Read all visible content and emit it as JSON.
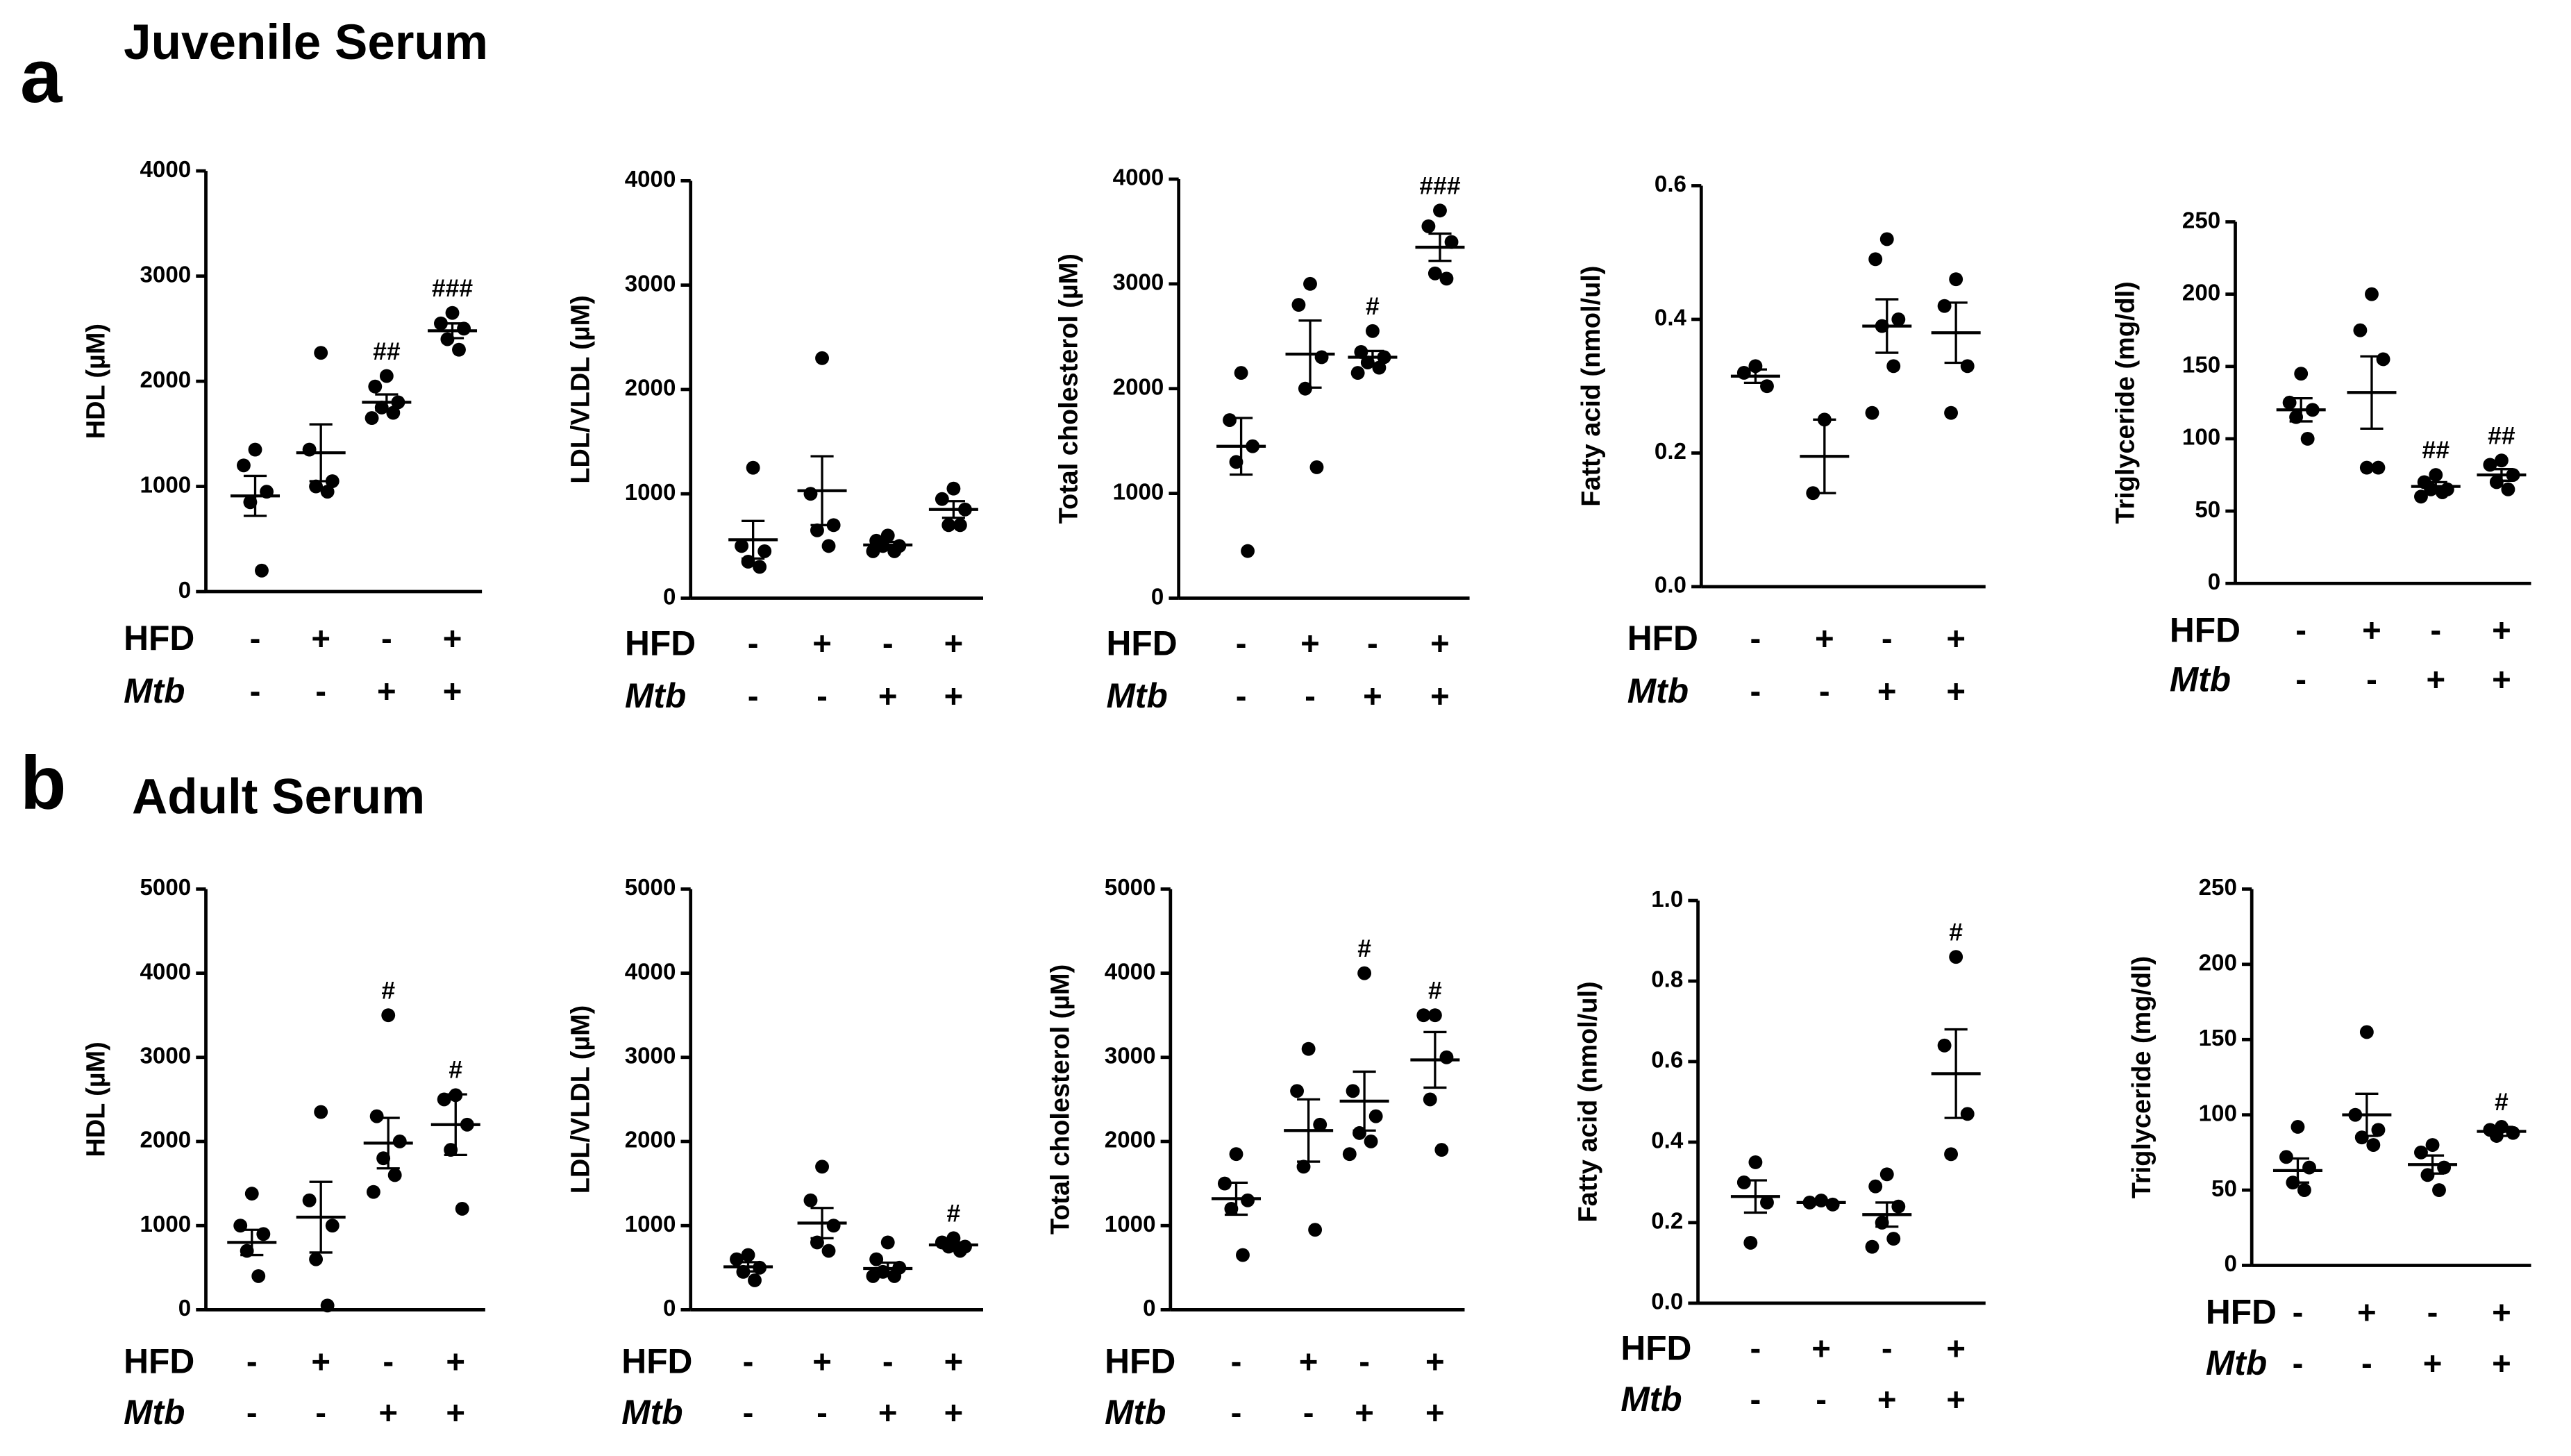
{
  "panels": [
    {
      "letter": "a",
      "title": "Juvenile Serum"
    },
    {
      "letter": "b",
      "title": "Adult Serum"
    }
  ],
  "chart_data": [
    {
      "type": "dot",
      "ylabel": "HDL (µM)",
      "ylim": [
        0,
        4000
      ],
      "yticks": [
        0,
        1000,
        2000,
        3000,
        4000
      ],
      "groups": [
        {
          "values": [
            1350,
            1200,
            950,
            850,
            200
          ],
          "mean": 910,
          "sem": 190
        },
        {
          "values": [
            2270,
            1350,
            1050,
            1000,
            950
          ],
          "mean": 1320,
          "sem": 270
        },
        {
          "values": [
            2050,
            1950,
            1800,
            1750,
            1700,
            1650
          ],
          "mean": 1800,
          "sem": 75,
          "label": "##"
        },
        {
          "values": [
            2650,
            2550,
            2500,
            2400,
            2300
          ],
          "mean": 2480,
          "sem": 70,
          "label": "###"
        }
      ],
      "rows": [
        {
          "name": "HFD",
          "signs": [
            "-",
            "+",
            "-",
            "+"
          ]
        },
        {
          "name": "Mtb",
          "signs": [
            "-",
            "-",
            "+",
            "+"
          ]
        }
      ]
    },
    {
      "type": "dot",
      "ylabel": "LDL/VLDL (µM)",
      "ylim": [
        0,
        4000
      ],
      "yticks": [
        0,
        1000,
        2000,
        3000,
        4000
      ],
      "groups": [
        {
          "values": [
            1250,
            500,
            450,
            350,
            300
          ],
          "mean": 560,
          "sem": 180
        },
        {
          "values": [
            2300,
            1000,
            700,
            650,
            500
          ],
          "mean": 1030,
          "sem": 330
        },
        {
          "values": [
            600,
            550,
            500,
            500,
            450,
            450
          ],
          "mean": 510,
          "sem": 30
        },
        {
          "values": [
            1050,
            950,
            850,
            700,
            700
          ],
          "mean": 850,
          "sem": 80
        }
      ],
      "rows": [
        {
          "name": "HFD",
          "signs": [
            "-",
            "+",
            "-",
            "+"
          ]
        },
        {
          "name": "Mtb",
          "signs": [
            "-",
            "-",
            "+",
            "+"
          ]
        }
      ]
    },
    {
      "type": "dot",
      "ylabel": "Total cholesterol (µM)",
      "ylim": [
        0,
        4000
      ],
      "yticks": [
        0,
        1000,
        2000,
        3000,
        4000
      ],
      "groups": [
        {
          "values": [
            2150,
            1700,
            1450,
            1300,
            450
          ],
          "mean": 1450,
          "sem": 270
        },
        {
          "values": [
            3000,
            2800,
            2300,
            2000,
            1250
          ],
          "mean": 2330,
          "sem": 320
        },
        {
          "values": [
            2550,
            2350,
            2300,
            2250,
            2200,
            2150
          ],
          "mean": 2300,
          "sem": 60,
          "label": "#"
        },
        {
          "values": [
            3700,
            3550,
            3400,
            3100,
            3050
          ],
          "mean": 3350,
          "sem": 130,
          "label": "###"
        }
      ],
      "rows": [
        {
          "name": "HFD",
          "signs": [
            "-",
            "+",
            "-",
            "+"
          ]
        },
        {
          "name": "Mtb",
          "signs": [
            "-",
            "-",
            "+",
            "+"
          ]
        }
      ]
    },
    {
      "type": "dot",
      "ylabel": "Fatty acid (nmol/ul)",
      "ylim": [
        0,
        0.6
      ],
      "yticks": [
        {
          "value": 0,
          "label": "0.0"
        },
        0.2,
        0.4,
        0.6
      ],
      "groups": [
        {
          "values": [
            0.33,
            0.32,
            0.3
          ],
          "mean": 0.315,
          "sem": 0.01
        },
        {
          "values": [
            0.25,
            0.14
          ],
          "mean": 0.195,
          "sem": 0.055
        },
        {
          "values": [
            0.52,
            0.49,
            0.4,
            0.39,
            0.33,
            0.26
          ],
          "mean": 0.39,
          "sem": 0.04
        },
        {
          "values": [
            0.46,
            0.42,
            0.33,
            0.26
          ],
          "mean": 0.38,
          "sem": 0.045
        }
      ],
      "rows": [
        {
          "name": "HFD",
          "signs": [
            "-",
            "+",
            "-",
            "+"
          ]
        },
        {
          "name": "Mtb",
          "signs": [
            "-",
            "-",
            "+",
            "+"
          ]
        }
      ]
    },
    {
      "type": "dot",
      "ylabel": "Triglyceride (mg/dl)",
      "ylim": [
        0,
        250
      ],
      "yticks": [
        0,
        50,
        100,
        150,
        200,
        250
      ],
      "groups": [
        {
          "values": [
            145,
            125,
            120,
            115,
            100
          ],
          "mean": 120,
          "sem": 8
        },
        {
          "values": [
            200,
            175,
            155,
            80,
            80
          ],
          "mean": 132,
          "sem": 25
        },
        {
          "values": [
            75,
            70,
            65,
            65,
            63,
            60
          ],
          "mean": 67,
          "sem": 3,
          "label": "##"
        },
        {
          "values": [
            85,
            82,
            75,
            70,
            65
          ],
          "mean": 75,
          "sem": 4,
          "label": "##"
        }
      ],
      "rows": [
        {
          "name": "HFD",
          "signs": [
            "-",
            "+",
            "-",
            "+"
          ]
        },
        {
          "name": "Mtb",
          "signs": [
            "-",
            "-",
            "+",
            "+"
          ]
        }
      ]
    },
    {
      "type": "dot",
      "ylabel": "HDL (µM)",
      "ylim": [
        0,
        5000
      ],
      "yticks": [
        0,
        1000,
        2000,
        3000,
        4000,
        5000
      ],
      "groups": [
        {
          "values": [
            1380,
            1000,
            900,
            700,
            400
          ],
          "mean": 800,
          "sem": 150
        },
        {
          "values": [
            2350,
            1300,
            1000,
            600,
            50
          ],
          "mean": 1100,
          "sem": 420
        },
        {
          "values": [
            3500,
            2300,
            2000,
            1800,
            1600,
            1400
          ],
          "mean": 1980,
          "sem": 300,
          "label": "#"
        },
        {
          "values": [
            2550,
            2500,
            2200,
            1900,
            1200
          ],
          "mean": 2200,
          "sem": 360,
          "label": "#"
        }
      ],
      "rows": [
        {
          "name": "HFD",
          "signs": [
            "-",
            "+",
            "-",
            "+"
          ]
        },
        {
          "name": "Mtb",
          "signs": [
            "-",
            "-",
            "+",
            "+"
          ]
        }
      ]
    },
    {
      "type": "dot",
      "ylabel": "LDL/VLDL (µM)",
      "ylim": [
        0,
        5000
      ],
      "yticks": [
        0,
        1000,
        2000,
        3000,
        4000,
        5000
      ],
      "groups": [
        {
          "values": [
            650,
            600,
            500,
            450,
            350
          ],
          "mean": 510,
          "sem": 55
        },
        {
          "values": [
            1700,
            1300,
            1000,
            800,
            700
          ],
          "mean": 1030,
          "sem": 180
        },
        {
          "values": [
            800,
            600,
            500,
            450,
            400,
            400
          ],
          "mean": 490,
          "sem": 70
        },
        {
          "values": [
            850,
            800,
            750,
            750,
            700
          ],
          "mean": 770,
          "sem": 30,
          "label": "#"
        }
      ],
      "rows": [
        {
          "name": "HFD",
          "signs": [
            "-",
            "+",
            "-",
            "+"
          ]
        },
        {
          "name": "Mtb",
          "signs": [
            "-",
            "-",
            "+",
            "+"
          ]
        }
      ]
    },
    {
      "type": "dot",
      "ylabel": "Total cholesterol (µM)",
      "ylim": [
        0,
        5000
      ],
      "yticks": [
        0,
        1000,
        2000,
        3000,
        4000,
        5000
      ],
      "groups": [
        {
          "values": [
            1850,
            1500,
            1300,
            1200,
            650
          ],
          "mean": 1320,
          "sem": 190
        },
        {
          "values": [
            3100,
            2600,
            2200,
            1700,
            950
          ],
          "mean": 2130,
          "sem": 370
        },
        {
          "values": [
            4000,
            2600,
            2300,
            2100,
            2000,
            1850
          ],
          "mean": 2480,
          "sem": 350,
          "label": "#"
        },
        {
          "values": [
            3500,
            3500,
            3000,
            2500,
            1900
          ],
          "mean": 2970,
          "sem": 330,
          "label": "#"
        }
      ],
      "rows": [
        {
          "name": "HFD",
          "signs": [
            "-",
            "+",
            "-",
            "+"
          ]
        },
        {
          "name": "Mtb",
          "signs": [
            "-",
            "-",
            "+",
            "+"
          ]
        }
      ]
    },
    {
      "type": "dot",
      "ylabel": "Fatty acid (nmol/ul)",
      "ylim": [
        0,
        1.0
      ],
      "yticks": [
        {
          "value": 0,
          "label": "0.0"
        },
        0.2,
        0.4,
        0.6,
        0.8,
        {
          "value": 1.0,
          "label": "1.0"
        }
      ],
      "groups": [
        {
          "values": [
            0.35,
            0.3,
            0.25,
            0.15
          ],
          "mean": 0.265,
          "sem": 0.04
        },
        {
          "values": [
            0.255,
            0.25,
            0.245
          ],
          "mean": 0.25,
          "sem": 0.005
        },
        {
          "values": [
            0.32,
            0.29,
            0.24,
            0.2,
            0.16,
            0.14
          ],
          "mean": 0.22,
          "sem": 0.03
        },
        {
          "values": [
            0.86,
            0.64,
            0.47,
            0.37
          ],
          "mean": 0.57,
          "sem": 0.11,
          "label": "#"
        }
      ],
      "rows": [
        {
          "name": "HFD",
          "signs": [
            "-",
            "+",
            "-",
            "+"
          ]
        },
        {
          "name": "Mtb",
          "signs": [
            "-",
            "-",
            "+",
            "+"
          ]
        }
      ]
    },
    {
      "type": "dot",
      "ylabel": "Triglyceride (mg/dl)",
      "ylim": [
        0,
        250
      ],
      "yticks": [
        0,
        50,
        100,
        150,
        200,
        250
      ],
      "groups": [
        {
          "values": [
            92,
            72,
            65,
            55,
            50
          ],
          "mean": 63,
          "sem": 8
        },
        {
          "values": [
            155,
            100,
            90,
            85,
            80
          ],
          "mean": 100,
          "sem": 14
        },
        {
          "values": [
            80,
            75,
            65,
            60,
            50
          ],
          "mean": 67,
          "sem": 6
        },
        {
          "values": [
            92,
            90,
            88,
            86
          ],
          "mean": 89,
          "sem": 3,
          "label": "#"
        }
      ],
      "rows": [
        {
          "name": "HFD",
          "signs": [
            "-",
            "+",
            "-",
            "+"
          ]
        },
        {
          "name": "Mtb",
          "signs": [
            "-",
            "-",
            "+",
            "+"
          ]
        }
      ]
    }
  ]
}
